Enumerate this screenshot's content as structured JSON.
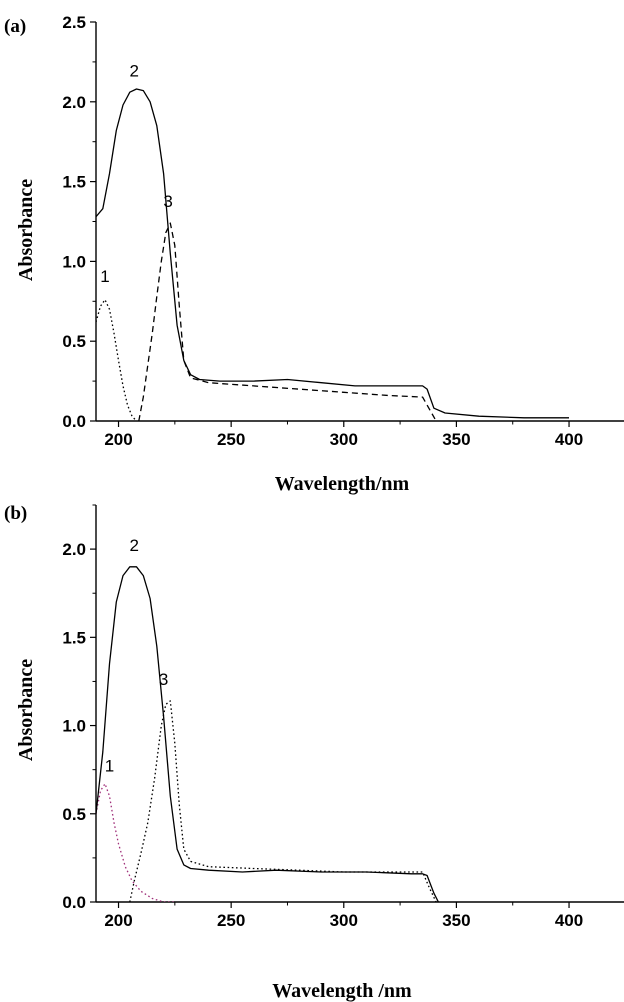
{
  "chart_data": [
    {
      "panel": "(a)",
      "type": "line",
      "xlabel": "Wavelength/nm",
      "ylabel": "Absorbance",
      "xlim": [
        190,
        425
      ],
      "ylim": [
        0,
        2.5
      ],
      "xticks": [
        "200",
        "250",
        "300",
        "350",
        "400"
      ],
      "yticks": [
        "0.0",
        "0.5",
        "1.0",
        "1.5",
        "2.0",
        "2.5"
      ],
      "series": [
        {
          "name": "1",
          "style": "dotted",
          "color": "#000000",
          "x": [
            190,
            192,
            194,
            196,
            198,
            200,
            202,
            204,
            206,
            208
          ],
          "y": [
            0.62,
            0.72,
            0.76,
            0.7,
            0.55,
            0.38,
            0.22,
            0.1,
            0.03,
            0.0
          ]
        },
        {
          "name": "2",
          "style": "solid",
          "color": "#000000",
          "x": [
            190,
            193,
            196,
            199,
            202,
            205,
            208,
            211,
            214,
            217,
            220,
            223,
            226,
            229,
            232,
            236,
            245,
            260,
            275,
            290,
            305,
            320,
            335,
            337,
            340,
            345,
            360,
            380,
            400
          ],
          "y": [
            1.28,
            1.33,
            1.55,
            1.82,
            1.98,
            2.06,
            2.08,
            2.07,
            2.0,
            1.85,
            1.55,
            1.05,
            0.6,
            0.38,
            0.29,
            0.26,
            0.25,
            0.25,
            0.26,
            0.24,
            0.22,
            0.22,
            0.22,
            0.2,
            0.08,
            0.05,
            0.03,
            0.02,
            0.02
          ]
        },
        {
          "name": "3",
          "style": "dashed",
          "color": "#000000",
          "x": [
            209,
            211,
            213,
            215,
            217,
            219,
            221,
            223,
            225,
            227,
            229,
            232,
            240,
            260,
            280,
            300,
            320,
            335,
            339,
            341
          ],
          "y": [
            0.0,
            0.15,
            0.35,
            0.55,
            0.78,
            1.0,
            1.18,
            1.24,
            1.1,
            0.72,
            0.38,
            0.27,
            0.24,
            0.22,
            0.2,
            0.18,
            0.16,
            0.15,
            0.05,
            0.0
          ]
        }
      ]
    },
    {
      "panel": "(b)",
      "type": "line",
      "xlabel": "Wavelength /nm",
      "ylabel": "Absorbance",
      "xlim": [
        190,
        425
      ],
      "ylim": [
        0,
        2.25
      ],
      "xticks": [
        "200",
        "250",
        "300",
        "350",
        "400"
      ],
      "yticks": [
        "0.0",
        "0.5",
        "1.0",
        "1.5",
        "2.0"
      ],
      "series": [
        {
          "name": "1",
          "style": "dotted",
          "color": "#a0307a",
          "x": [
            190,
            192,
            194,
            196,
            198,
            200,
            203,
            206,
            210,
            215,
            220,
            225
          ],
          "y": [
            0.5,
            0.63,
            0.67,
            0.6,
            0.45,
            0.33,
            0.2,
            0.12,
            0.06,
            0.02,
            0.0,
            0.0
          ]
        },
        {
          "name": "2",
          "style": "solid",
          "color": "#000000",
          "x": [
            190,
            193,
            196,
            199,
            202,
            205,
            208,
            211,
            214,
            217,
            220,
            223,
            226,
            229,
            232,
            240,
            255,
            270,
            290,
            310,
            330,
            335,
            337,
            340,
            342
          ],
          "y": [
            0.5,
            0.85,
            1.35,
            1.7,
            1.85,
            1.9,
            1.9,
            1.85,
            1.72,
            1.45,
            1.05,
            0.6,
            0.3,
            0.21,
            0.19,
            0.18,
            0.17,
            0.18,
            0.17,
            0.17,
            0.16,
            0.16,
            0.15,
            0.05,
            0.0
          ]
        },
        {
          "name": "3",
          "style": "dotted",
          "color": "#000000",
          "x": [
            205,
            207,
            210,
            213,
            216,
            219,
            221,
            223,
            225,
            227,
            229,
            232,
            240,
            260,
            280,
            300,
            320,
            335,
            338,
            341
          ],
          "y": [
            0.0,
            0.12,
            0.28,
            0.45,
            0.7,
            1.0,
            1.12,
            1.14,
            0.9,
            0.55,
            0.3,
            0.23,
            0.2,
            0.19,
            0.18,
            0.17,
            0.17,
            0.17,
            0.08,
            0.0
          ]
        }
      ]
    }
  ]
}
